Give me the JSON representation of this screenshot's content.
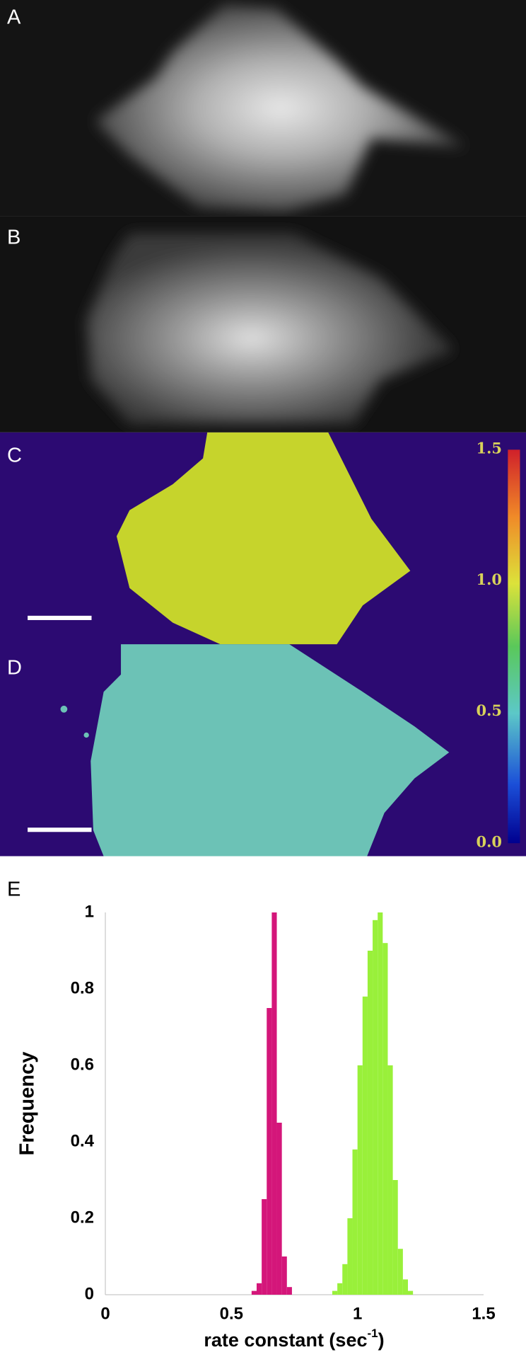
{
  "panels": {
    "labels": [
      "A",
      "B",
      "C",
      "D"
    ]
  },
  "colorbar": {
    "lim": [
      0,
      1.5
    ],
    "ticks": [
      {
        "value": 1.5,
        "label": "1.5"
      },
      {
        "value": 1,
        "label": "1.0"
      },
      0.5,
      {
        "value": 0,
        "label": "0.0"
      }
    ]
  },
  "chart_data": {
    "type": "histogram",
    "panel_label": "E",
    "x_label": [
      "rate constant (sec",
      "-1",
      ")"
    ],
    "y_label": "Frequency",
    "bins": [
      0.56,
      0.58,
      0.6,
      0.62,
      0.64,
      0.66,
      0.68,
      0.7,
      0.72,
      0.74,
      0.76,
      0.78,
      0.8,
      0.82,
      0.84,
      0.86,
      0.88,
      0.9,
      0.92,
      0.94,
      0.96,
      0.98,
      1.0,
      1.02,
      1.04,
      1.06,
      1.08,
      1.1,
      1.12,
      1.14,
      1.16,
      1.18,
      1.2,
      1.22,
      1.24
    ],
    "series": [
      {
        "color": "#d4167a",
        "values": [
          0,
          0.01,
          0.03,
          0.25,
          0.75,
          1,
          0.45,
          0.1,
          0.02,
          0,
          0,
          0,
          0,
          0,
          0,
          0,
          0,
          0,
          0,
          0,
          0,
          0,
          0,
          0,
          0,
          0,
          0,
          0,
          0,
          0,
          0,
          0,
          0,
          0
        ]
      },
      {
        "color": "#99f03a",
        "values": [
          0,
          0,
          0,
          0,
          0,
          0,
          0,
          0,
          0,
          0,
          0,
          0,
          0,
          0,
          0,
          0,
          0,
          0.01,
          0.03,
          0.08,
          0.2,
          0.38,
          0.6,
          0.78,
          0.9,
          0.98,
          1,
          0.92,
          0.6,
          0.3,
          0.12,
          0.04,
          0.01,
          0
        ]
      }
    ],
    "xlim": [
      0,
      1.5
    ],
    "xticks": [
      0,
      0.5,
      1,
      1.5
    ],
    "ylim": [
      0,
      1
    ],
    "yticks": [
      0,
      0.2,
      0.4,
      0.6,
      0.8,
      1
    ]
  }
}
